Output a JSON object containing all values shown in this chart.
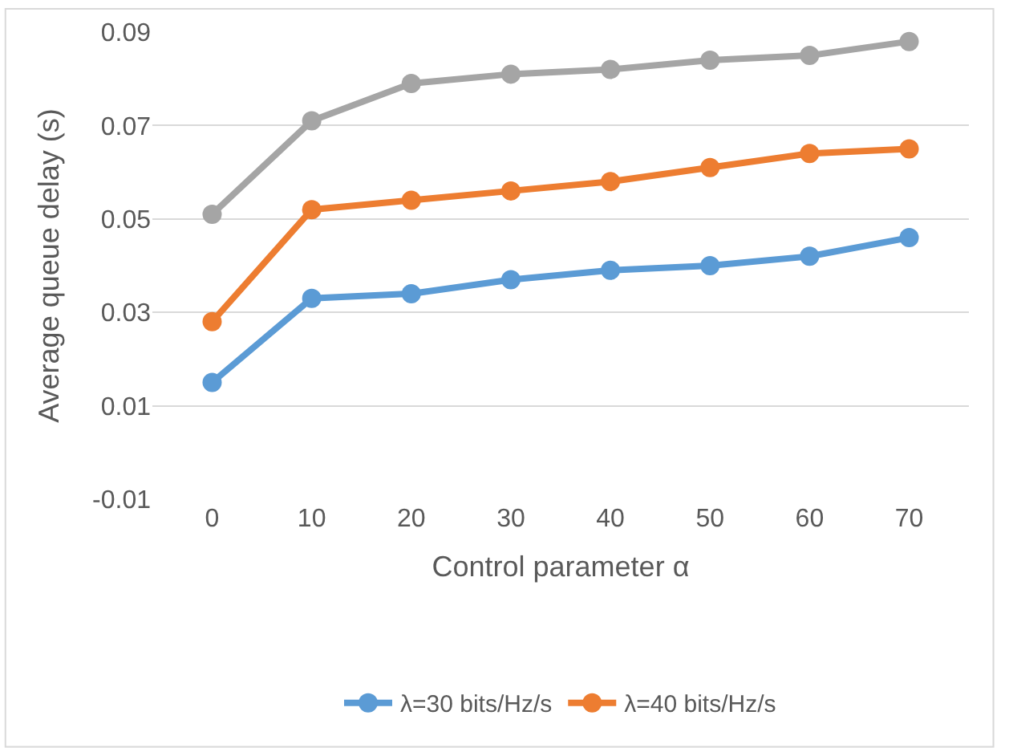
{
  "chart_data": {
    "type": "line",
    "xlabel": "Control parameter α",
    "ylabel": "Average queue delay (s)",
    "categories": [
      "0",
      "10",
      "20",
      "30",
      "40",
      "50",
      "60",
      "70"
    ],
    "series": [
      {
        "name": "λ=30 bits/Hz/s",
        "color": "#5b9bd5",
        "values": [
          0.015,
          0.033,
          0.034,
          0.037,
          0.039,
          0.04,
          0.042,
          0.046
        ]
      },
      {
        "name": "λ=40 bits/Hz/s",
        "color": "#ed7d31",
        "values": [
          0.028,
          0.052,
          0.054,
          0.056,
          0.058,
          0.061,
          0.064,
          0.065
        ]
      },
      {
        "color": "#a5a5a5",
        "values": [
          0.051,
          0.071,
          0.079,
          0.081,
          0.082,
          0.084,
          0.085,
          0.088
        ]
      }
    ],
    "ylim": [
      -0.01,
      0.09
    ],
    "yticks": [
      -0.01,
      0.01,
      0.03,
      0.05,
      0.07,
      0.09
    ],
    "grid": "y",
    "legend": "bottom",
    "marker": "circle",
    "line_style": "solid"
  }
}
